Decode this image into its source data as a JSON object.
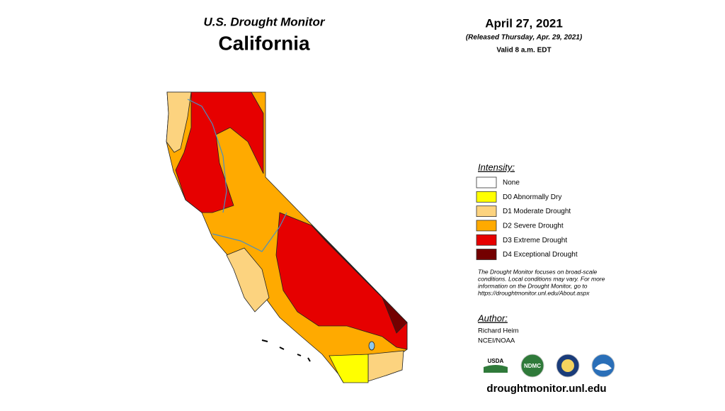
{
  "header": {
    "title": "U.S. Drought Monitor",
    "state": "California",
    "date": "April 27, 2021",
    "released": "(Released Thursday, Apr. 29, 2021)",
    "valid": "Valid 8 a.m. EDT"
  },
  "legend": {
    "heading": "Intensity:",
    "items": [
      {
        "label": "None",
        "color": "#ffffff"
      },
      {
        "label": "D0 Abnormally Dry",
        "color": "#ffff00"
      },
      {
        "label": "D1 Moderate Drought",
        "color": "#fcd37f"
      },
      {
        "label": "D2 Severe Drought",
        "color": "#ffaa00"
      },
      {
        "label": "D3 Extreme Drought",
        "color": "#e60000"
      },
      {
        "label": "D4 Exceptional Drought",
        "color": "#730000"
      }
    ]
  },
  "note": [
    "The Drought Monitor focuses on broad-scale",
    "conditions. Local conditions may vary. For more",
    "information on the Drought Monitor, go to",
    "https://droughtmonitor.unl.edu/About.aspx"
  ],
  "author": {
    "heading": "Author:",
    "name": "Richard Heim",
    "org": "NCEI/NOAA"
  },
  "logos": [
    "USDA",
    "NDMC"
  ],
  "footer": {
    "url": "droughtmonitor.unl.edu"
  }
}
